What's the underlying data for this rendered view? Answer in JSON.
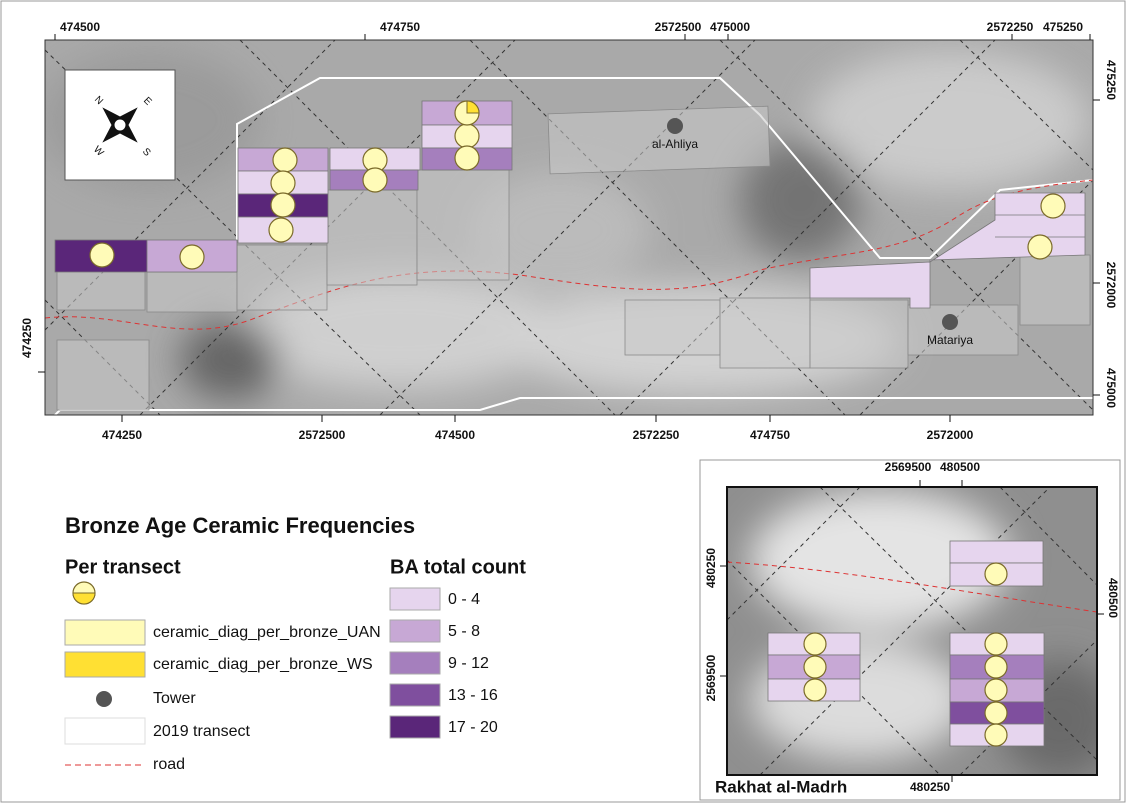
{
  "map": {
    "top_labels": [
      "474500",
      "474750",
      "2572500",
      "475000",
      "2572250",
      "475250"
    ],
    "right_labels": [
      "475250",
      "2572000",
      "475000"
    ],
    "left_labels": [
      "474250"
    ],
    "bottom_labels": [
      "474250",
      "2572500",
      "474500",
      "2572250",
      "474750",
      "2572000"
    ],
    "places": [
      "al-Ahliya",
      "Matariya"
    ]
  },
  "legend": {
    "title": "Bronze Age Ceramic Frequencies",
    "per_transect": {
      "heading": "Per transect",
      "items": [
        "ceramic_diag_per_bronze_UAN",
        "ceramic_diag_per_bronze_WS",
        "Tower",
        "2019 transect",
        "road"
      ]
    },
    "ba_total": {
      "heading": "BA total count",
      "classes": [
        "0 - 4",
        "5 - 8",
        "9 - 12",
        "13 - 16",
        "17 - 20"
      ]
    }
  },
  "inset": {
    "title": "Rakhat al-Madrh",
    "top_labels": [
      "2569500",
      "480500"
    ],
    "left_labels": [
      "480250",
      "2569500"
    ],
    "right_labels": [
      "480500"
    ],
    "bottom_labels": [
      "480250"
    ]
  }
}
